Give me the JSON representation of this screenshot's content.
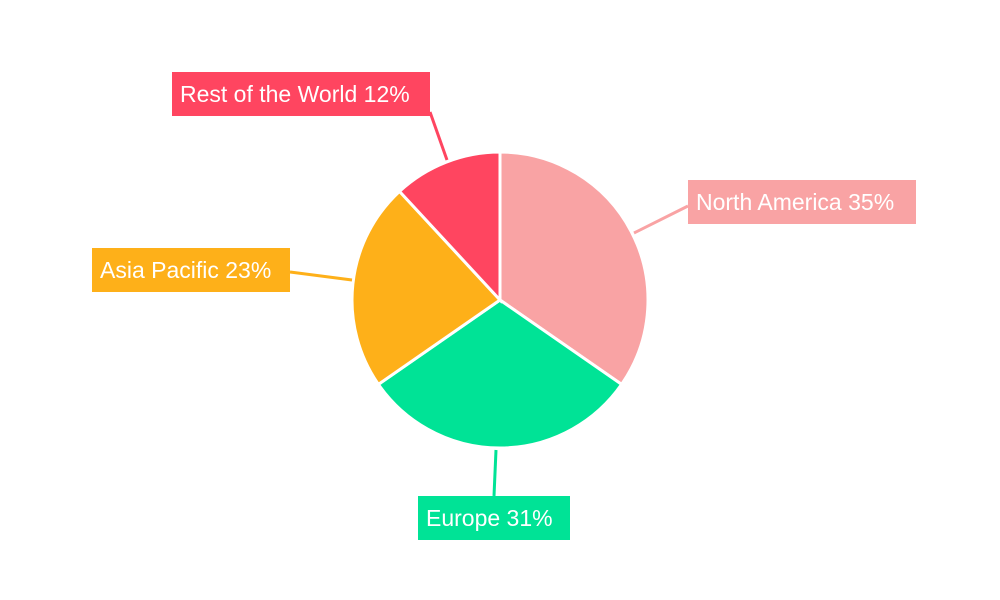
{
  "chart_data": {
    "type": "pie",
    "categories": [
      "North America",
      "Europe",
      "Asia Pacific",
      "Rest of the World"
    ],
    "values": [
      35,
      31,
      23,
      12
    ],
    "unit": "%",
    "colors": [
      "#F9A3A4",
      "#00E396",
      "#FEB019",
      "#FF4560"
    ],
    "start": "top, clockwise",
    "labels": [
      "North America 35%",
      "Europe 31%",
      "Asia Pacific 23%",
      "Rest of the World 12%"
    ]
  }
}
